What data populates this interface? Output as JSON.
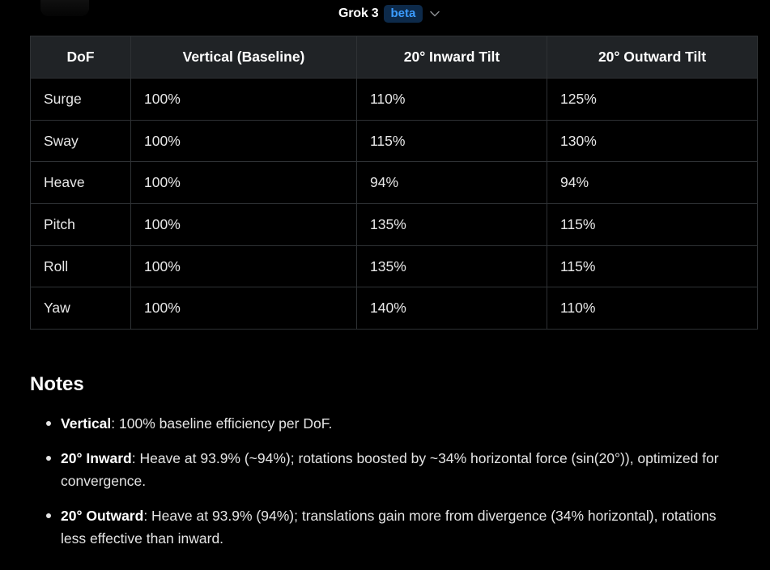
{
  "header": {
    "model_name": "Grok 3",
    "badge": "beta",
    "chevron_icon": "chevron-down-icon"
  },
  "table": {
    "headers": [
      "DoF",
      "Vertical (Baseline)",
      "20° Inward Tilt",
      "20° Outward Tilt"
    ],
    "rows": [
      [
        "Surge",
        "100%",
        "110%",
        "125%"
      ],
      [
        "Sway",
        "100%",
        "115%",
        "130%"
      ],
      [
        "Heave",
        "100%",
        "94%",
        "94%"
      ],
      [
        "Pitch",
        "100%",
        "135%",
        "115%"
      ],
      [
        "Roll",
        "100%",
        "135%",
        "115%"
      ],
      [
        "Yaw",
        "100%",
        "140%",
        "110%"
      ]
    ]
  },
  "notes": {
    "title": "Notes",
    "items": [
      {
        "label": "Vertical",
        "text": ": 100% baseline efficiency per DoF."
      },
      {
        "label": "20° Inward",
        "text": ": Heave at 93.9% (~94%); rotations boosted by ~34% horizontal force (sin(20°)), optimized for convergence."
      },
      {
        "label": "20° Outward",
        "text": ": Heave at 93.9% (94%); translations gain more from divergence (34% horizontal), rotations less effective than inward."
      }
    ]
  },
  "colors": {
    "background": "#000000",
    "header_row": "#202326",
    "border": "#2e3134",
    "badge_bg": "#0d2a4a",
    "badge_text": "#3b9cff"
  }
}
